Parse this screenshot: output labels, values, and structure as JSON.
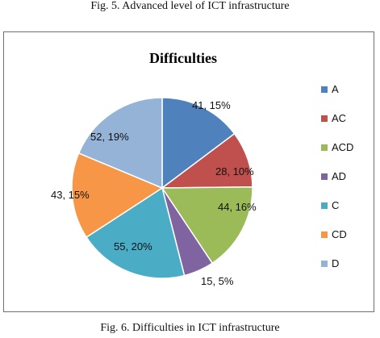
{
  "captions": {
    "top": "Fig. 5. Advanced level of ICT infrastructure",
    "bottom": "Fig. 6. Difficulties in ICT infrastructure"
  },
  "chart_data": {
    "type": "pie",
    "title": "Difficulties",
    "legend_position": "right",
    "slices": [
      {
        "name": "A",
        "value": 41,
        "percent": 15,
        "label": "41, 15%",
        "color": "#4F81BD"
      },
      {
        "name": "AC",
        "value": 28,
        "percent": 10,
        "label": "28, 10%",
        "color": "#C0504D"
      },
      {
        "name": "ACD",
        "value": 44,
        "percent": 16,
        "label": "44, 16%",
        "color": "#9BBB59"
      },
      {
        "name": "AD",
        "value": 15,
        "percent": 5,
        "label": "15, 5%",
        "color": "#8064A2"
      },
      {
        "name": "C",
        "value": 55,
        "percent": 20,
        "label": "55, 20%",
        "color": "#4BACC6"
      },
      {
        "name": "CD",
        "value": 43,
        "percent": 15,
        "label": "43, 15%",
        "color": "#F79646"
      },
      {
        "name": "D",
        "value": 52,
        "percent": 19,
        "label": "52, 19%",
        "color": "#95B3D7"
      }
    ]
  }
}
